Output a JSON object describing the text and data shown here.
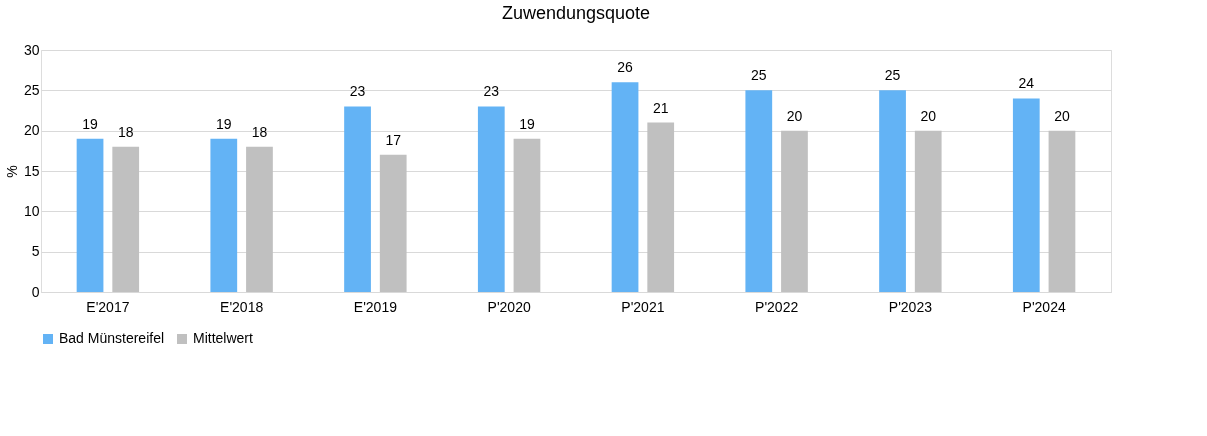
{
  "chart_data": {
    "type": "bar",
    "title": "Zuwendungsquote",
    "ylabel": "%",
    "categories": [
      "E'2017",
      "E'2018",
      "E'2019",
      "P'2020",
      "P'2021",
      "P'2022",
      "P'2023",
      "P'2024"
    ],
    "series": [
      {
        "name": "Bad Münstereifel",
        "color": "#63b3f5",
        "values": [
          19,
          19,
          23,
          23,
          26,
          25,
          25,
          24
        ]
      },
      {
        "name": "Mittelwert",
        "color": "#c0c0c0",
        "values": [
          18,
          18,
          17,
          19,
          21,
          20,
          20,
          20
        ]
      }
    ],
    "ylim": [
      0,
      30
    ],
    "yticks": [
      0,
      5,
      10,
      15,
      20,
      25,
      30
    ],
    "grid": "y",
    "legend": "bottom",
    "data_labels": true
  }
}
